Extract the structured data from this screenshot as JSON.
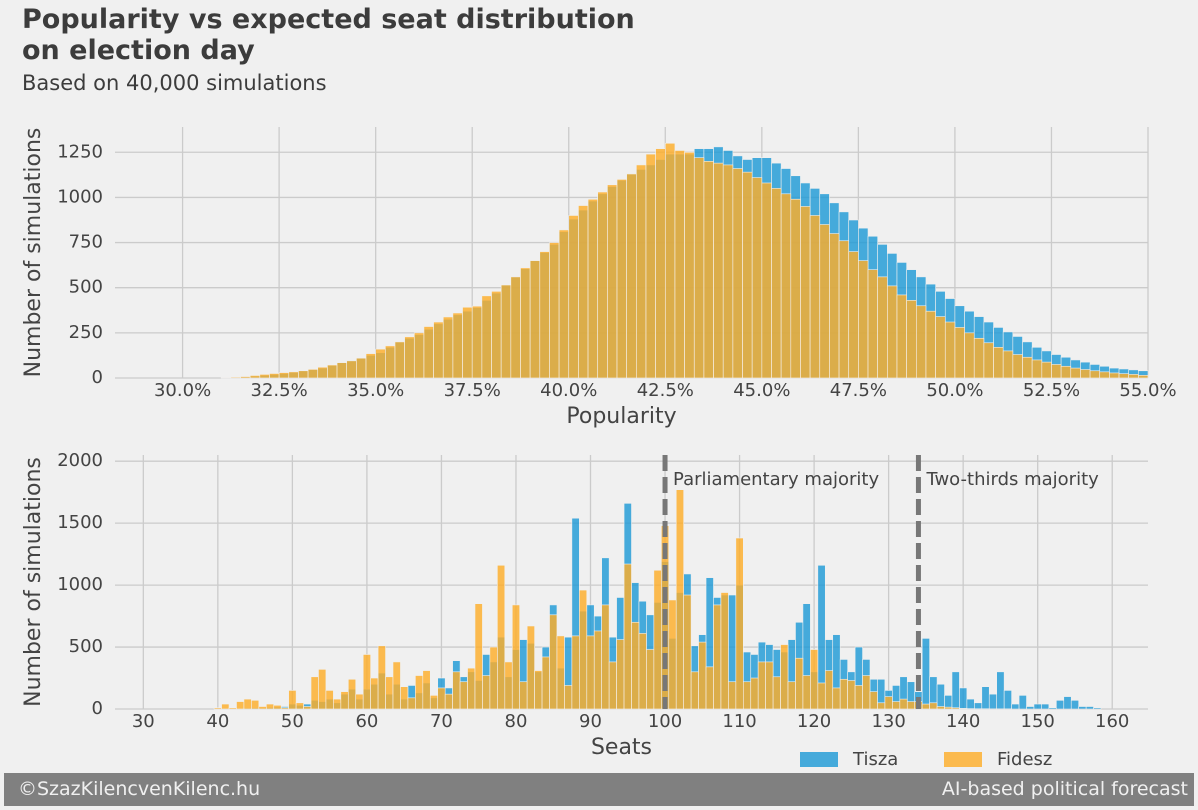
{
  "title": "Popularity vs expected seat distribution on election day",
  "subtitle": "Based on 40,000 simulations",
  "footer": {
    "left": "©SzazKilencvenKilenc.hu",
    "right": "AI-based political forecast"
  },
  "chart_data": [
    {
      "type": "histogram",
      "x_label": "Popularity",
      "y_label": "Number of simulations",
      "bins": [
        31,
        31.25,
        31.5,
        31.75,
        32,
        32.25,
        32.5,
        32.75,
        33,
        33.25,
        33.5,
        33.75,
        34,
        34.25,
        34.5,
        34.75,
        35,
        35.25,
        35.5,
        35.75,
        36,
        36.25,
        36.5,
        36.75,
        37,
        37.25,
        37.5,
        37.75,
        38,
        38.25,
        38.5,
        38.75,
        39,
        39.25,
        39.5,
        39.75,
        40,
        40.25,
        40.5,
        40.75,
        41,
        41.25,
        41.5,
        41.75,
        42,
        42.25,
        42.5,
        42.75,
        43,
        43.25,
        43.5,
        43.75,
        44,
        44.25,
        44.5,
        44.75,
        45,
        45.25,
        45.5,
        45.75,
        46,
        46.25,
        46.5,
        46.75,
        47,
        47.25,
        47.5,
        47.75,
        48,
        48.25,
        48.5,
        48.75,
        49,
        49.25,
        49.5,
        49.75,
        50,
        50.25,
        50.5,
        50.75,
        51,
        51.25,
        51.5,
        51.75,
        52,
        52.25,
        52.5,
        52.75,
        53,
        53.25,
        53.5,
        53.75,
        54,
        54.25,
        54.5,
        54.75,
        55
      ],
      "series": [
        {
          "name": "Tisza",
          "color": "#1e9ad6",
          "values": [
            2,
            4,
            6,
            10,
            15,
            20,
            25,
            32,
            40,
            47,
            55,
            70,
            85,
            97,
            110,
            125,
            140,
            170,
            200,
            220,
            240,
            270,
            300,
            325,
            350,
            370,
            390,
            430,
            470,
            515,
            560,
            605,
            650,
            695,
            740,
            810,
            880,
            930,
            980,
            1020,
            1060,
            1095,
            1130,
            1155,
            1180,
            1210,
            1240,
            1240,
            1240,
            1270,
            1270,
            1280,
            1260,
            1230,
            1210,
            1220,
            1220,
            1190,
            1160,
            1120,
            1080,
            1050,
            1020,
            970,
            920,
            875,
            830,
            785,
            740,
            690,
            640,
            600,
            560,
            520,
            480,
            440,
            400,
            370,
            340,
            310,
            280,
            255,
            230,
            200,
            170,
            150,
            130,
            115,
            100,
            88,
            75,
            65,
            55,
            50,
            45,
            40
          ]
        },
        {
          "name": "Fidesz",
          "color": "#fcad2a",
          "values": [
            3,
            5,
            8,
            14,
            20,
            25,
            30,
            34,
            40,
            48,
            60,
            72,
            85,
            95,
            110,
            135,
            160,
            178,
            200,
            228,
            250,
            285,
            310,
            338,
            360,
            392,
            398,
            455,
            480,
            515,
            560,
            610,
            650,
            700,
            750,
            820,
            900,
            955,
            990,
            1030,
            1070,
            1100,
            1130,
            1180,
            1240,
            1270,
            1300,
            1260,
            1250,
            1220,
            1200,
            1190,
            1180,
            1160,
            1140,
            1110,
            1080,
            1050,
            1020,
            990,
            950,
            900,
            850,
            800,
            760,
            700,
            650,
            600,
            560,
            510,
            460,
            430,
            400,
            370,
            340,
            310,
            280,
            250,
            220,
            195,
            170,
            150,
            130,
            115,
            100,
            88,
            75,
            65,
            55,
            47,
            40,
            34,
            28,
            24,
            20,
            15
          ]
        }
      ],
      "xlim": [
        28.25,
        55
      ],
      "ylim": [
        0,
        1390
      ],
      "xticks": [
        {
          "value": 30,
          "label": "30.0%"
        },
        {
          "value": 32.5,
          "label": "32.5%"
        },
        {
          "value": 35,
          "label": "35.0%"
        },
        {
          "value": 37.5,
          "label": "37.5%"
        },
        {
          "value": 40,
          "label": "40.0%"
        },
        {
          "value": 42.5,
          "label": "42.5%"
        },
        {
          "value": 45,
          "label": "45.0%"
        },
        {
          "value": 47.5,
          "label": "47.5%"
        },
        {
          "value": 50,
          "label": "50.0%"
        },
        {
          "value": 52.5,
          "label": "52.5%"
        },
        {
          "value": 55,
          "label": "55.0%"
        }
      ],
      "yticks": [
        0,
        250,
        500,
        750,
        1000,
        1250
      ],
      "grid": true
    },
    {
      "type": "histogram",
      "x_label": "Seats",
      "y_label": "Number of simulations",
      "bins": [
        39.5,
        40.5,
        41.5,
        42.5,
        43.5,
        44.5,
        45.5,
        46.5,
        47.5,
        48.5,
        49.5,
        50.5,
        51.5,
        52.5,
        53.5,
        54.5,
        55.5,
        56.5,
        57.5,
        58.5,
        59.5,
        60.5,
        61.5,
        62.5,
        63.5,
        64.5,
        65.5,
        66.5,
        67.5,
        68.5,
        69.5,
        70.5,
        71.5,
        72.5,
        73.5,
        74.5,
        75.5,
        76.5,
        77.5,
        78.5,
        79.5,
        80.5,
        81.5,
        82.5,
        83.5,
        84.5,
        85.5,
        86.5,
        87.5,
        88.5,
        89.5,
        90.5,
        91.5,
        92.5,
        93.5,
        94.5,
        95.5,
        96.5,
        97.5,
        98.5,
        99.5,
        100.5,
        101.5,
        102.5,
        103.5,
        104.5,
        105.5,
        106.5,
        107.5,
        108.5,
        109.5,
        110.5,
        111.5,
        112.5,
        113.5,
        114.5,
        115.5,
        116.5,
        117.5,
        118.5,
        119.5,
        120.5,
        121.5,
        122.5,
        123.5,
        124.5,
        125.5,
        126.5,
        127.5,
        128.5,
        129.5,
        130.5,
        131.5,
        132.5,
        133.5,
        134.5,
        135.5,
        136.5,
        137.5,
        138.5,
        139.5,
        140.5,
        141.5,
        142.5,
        143.5,
        144.5,
        145.5,
        146.5,
        147.5,
        148.5,
        149.5,
        150.5,
        151.5,
        152.5,
        153.5,
        154.5,
        155.5,
        156.5,
        157.5,
        158.5
      ],
      "series": [
        {
          "name": "Tisza",
          "color": "#1e9ad6",
          "values": [
            2,
            3,
            4,
            5,
            8,
            10,
            8,
            12,
            15,
            20,
            40,
            30,
            40,
            70,
            60,
            80,
            50,
            120,
            160,
            80,
            160,
            200,
            290,
            120,
            200,
            80,
            190,
            130,
            210,
            90,
            250,
            170,
            390,
            260,
            300,
            230,
            440,
            380,
            580,
            260,
            480,
            560,
            530,
            300,
            500,
            840,
            330,
            580,
            1540,
            790,
            840,
            750,
            1220,
            580,
            900,
            1660,
            1020,
            870,
            760,
            860,
            1190,
            570,
            940,
            1090,
            510,
            600,
            1060,
            900,
            920,
            920,
            1000,
            460,
            440,
            540,
            520,
            480,
            460,
            560,
            700,
            850,
            300,
            1160,
            560,
            600,
            400,
            300,
            500,
            400,
            240,
            240,
            150,
            190,
            260,
            220,
            140,
            570,
            260,
            200,
            110,
            300,
            170,
            80,
            50,
            180,
            120,
            300,
            150,
            40,
            110,
            20,
            40,
            40,
            10,
            70,
            100,
            70,
            20,
            20,
            10
          ]
        },
        {
          "name": "Fidesz",
          "color": "#fcad2a",
          "values": [
            10,
            40,
            10,
            60,
            80,
            70,
            20,
            40,
            30,
            10,
            150,
            50,
            20,
            260,
            320,
            150,
            80,
            140,
            240,
            120,
            440,
            250,
            510,
            260,
            380,
            180,
            90,
            270,
            310,
            110,
            170,
            120,
            300,
            220,
            330,
            850,
            270,
            500,
            1160,
            380,
            840,
            220,
            670,
            310,
            420,
            760,
            590,
            190,
            590,
            960,
            590,
            630,
            840,
            380,
            560,
            1170,
            700,
            610,
            480,
            1120,
            1480,
            880,
            1770,
            920,
            300,
            540,
            340,
            840,
            940,
            220,
            1380,
            220,
            250,
            380,
            380,
            260,
            520,
            220,
            410,
            270,
            480,
            210,
            310,
            170,
            240,
            230,
            190,
            270,
            140,
            50,
            100,
            60,
            80,
            60,
            60,
            40,
            50,
            20,
            15,
            10,
            5,
            3,
            2,
            2,
            1,
            1,
            1,
            0,
            0,
            0,
            0,
            0,
            0,
            0,
            0,
            0,
            0,
            0,
            0,
            0
          ]
        }
      ],
      "vlines": [
        {
          "x": 100,
          "label": "Parliamentary majority"
        },
        {
          "x": 134,
          "label": "Two-thirds majority"
        }
      ],
      "xlim": [
        26.2,
        164.8
      ],
      "ylim": [
        0,
        2050
      ],
      "xticks": [
        30,
        40,
        50,
        60,
        70,
        80,
        90,
        100,
        110,
        120,
        130,
        140,
        150,
        160
      ],
      "yticks": [
        0,
        500,
        1000,
        1500,
        2000
      ],
      "grid": true
    }
  ]
}
